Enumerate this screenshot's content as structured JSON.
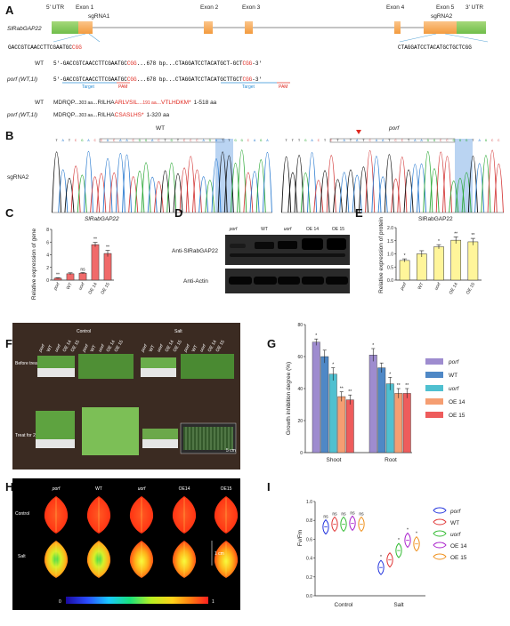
{
  "panelA": {
    "label": "A",
    "gene": "SlRabGAP22",
    "utr5": "5' UTR",
    "utr3": "3' UTR",
    "exons": [
      "Exon 1",
      "Exon 2",
      "Exon 3",
      "Exon 4",
      "Exon 5"
    ],
    "sgrna1": "sgRNA1",
    "sgrna2": "sgRNA2",
    "seq1_main": "GACCGTCAACCTTCGAATGC",
    "seq1_pam": "CGG",
    "seq2": "CTAGGATCCTACATGCTGCTCGG",
    "wt_label": "WT",
    "porf_label": "porf (WT,1I)",
    "wt_seq_a": "5'-GACCGTCAACCTTCGAATGC",
    "wt_seq_pam": "CGG",
    "wt_seq_b": "...678 bp...CTAGGATCCTACATGCT-GCT",
    "wt_seq_c": "CGG",
    "wt_seq_end": "-3'",
    "porf_seq_a": "5'-GACCGTCAACCTTCGAATGC",
    "porf_seq_pam": "CGG",
    "porf_seq_b": "...678 bp...CTAGGATCCTACATGCTTGCT",
    "porf_seq_c": "CGG",
    "porf_seq_end": "-3'",
    "target": "Target",
    "pam": "PAM",
    "prot_wt_a": "MDRQP...",
    "prot_wt_b": "303 aa",
    "prot_wt_c": "...RILHA",
    "prot_wt_d": "ARLVSIL",
    "prot_wt_e": "...",
    "prot_wt_f": "191 aa",
    "prot_wt_g": "...VTLHDKM*",
    "prot_wt_h": "1-518 aa",
    "prot_porf_a": "MDRQP...",
    "prot_porf_b": "303 aa",
    "prot_porf_c": "...RILHA",
    "prot_porf_d": "CSASLHS*",
    "prot_porf_e": "1-320 aa"
  },
  "panelB": {
    "label": "B",
    "wt": "WT",
    "porf": "porf",
    "sgrna": "sgRNA2"
  },
  "panelC": {
    "label": "C",
    "title": "SlRabGAP22",
    "ylabel": "Relative expression of gene",
    "sig": [
      "**",
      "",
      "ns",
      "**",
      "**"
    ]
  },
  "panelD": {
    "label": "D",
    "cols": [
      "porf",
      "WT",
      "uorf",
      "OE 14",
      "OE 15"
    ],
    "row1": "Anti-SlRabGAP22",
    "row2": "Anti-Actin"
  },
  "panelE": {
    "label": "E",
    "title": "SlRabGAP22",
    "ylabel": "Relative expression of protein",
    "sig": [
      "*",
      "",
      "*",
      "**",
      "**"
    ]
  },
  "panelF": {
    "label": "F",
    "control": "Control",
    "salt": "Salt",
    "before": "Before treat",
    "treat": "Treat for 21 d",
    "lines": [
      "porf",
      "WT",
      "uorf",
      "OE 14",
      "OE 15"
    ],
    "scale": "5 cm"
  },
  "panelG": {
    "label": "G",
    "ylabel": "Growth inhibition degree (%)",
    "sig_shoot": [
      "*",
      "",
      "*",
      "**",
      "**"
    ],
    "sig_root": [
      "*",
      "",
      "*",
      "**",
      "**"
    ]
  },
  "panelH": {
    "label": "H",
    "cols": [
      "porf",
      "WT",
      "uorf",
      "OE14",
      "OE15"
    ],
    "control": "Control",
    "salt": "Salt",
    "scale": "1 cm",
    "cbar_min": "0",
    "cbar_max": "1"
  },
  "panelI": {
    "label": "I",
    "ylabel": "Fv/Fm",
    "sig_control": [
      "ns",
      "ns",
      "ns",
      "ns",
      "ns"
    ],
    "sig_salt": [
      "*",
      "",
      "*",
      "*",
      "*"
    ]
  },
  "chart_data": [
    {
      "type": "bar",
      "panel": "C",
      "title": "SlRabGAP22",
      "ylabel": "Relative expression of gene",
      "categories": [
        "porf",
        "WT",
        "uorf",
        "OE 14",
        "OE 15"
      ],
      "values": [
        0.3,
        1.0,
        1.1,
        5.6,
        4.2
      ],
      "errors": [
        0.08,
        0.15,
        0.1,
        0.35,
        0.5
      ],
      "ylim": [
        0,
        8
      ],
      "yticks": [
        "0",
        "2",
        "4",
        "6",
        "8"
      ],
      "color": "#f06a6a"
    },
    {
      "type": "bar",
      "panel": "E",
      "title": "SlRabGAP22",
      "ylabel": "Relative expression of protein",
      "categories": [
        "porf",
        "WT",
        "uorf",
        "OE 14",
        "OE 15"
      ],
      "values": [
        0.75,
        1.0,
        1.27,
        1.52,
        1.46
      ],
      "errors": [
        0.06,
        0.12,
        0.08,
        0.13,
        0.13
      ],
      "ylim": [
        0,
        2.0
      ],
      "yticks": [
        "0.0",
        "0.5",
        "1.0",
        "1.5",
        "2.0"
      ],
      "color": "#fff59a"
    },
    {
      "type": "bar",
      "panel": "G",
      "ylabel": "Growth inhibition degree (%)",
      "categories": [
        "Shoot",
        "Root"
      ],
      "series": [
        {
          "name": "porf",
          "values": [
            69,
            61
          ],
          "errors": [
            2,
            4
          ],
          "color": "#9e8ccf"
        },
        {
          "name": "WT",
          "values": [
            60,
            53
          ],
          "errors": [
            4,
            3
          ],
          "color": "#4f88c6"
        },
        {
          "name": "uorf",
          "values": [
            49,
            43
          ],
          "errors": [
            4,
            4
          ],
          "color": "#4fc0d0"
        },
        {
          "name": "OE 14",
          "values": [
            35,
            37
          ],
          "errors": [
            3,
            3
          ],
          "color": "#f59e72"
        },
        {
          "name": "OE 15",
          "values": [
            33,
            37
          ],
          "errors": [
            3,
            3
          ],
          "color": "#ee5c5c"
        }
      ],
      "ylim": [
        0,
        80
      ],
      "yticks": [
        "0",
        "20",
        "40",
        "60",
        "80"
      ],
      "legend": "right"
    },
    {
      "type": "violin",
      "panel": "I",
      "ylabel": "Fv/Fm",
      "categories": [
        "Control",
        "Salt"
      ],
      "series": [
        {
          "name": "porf",
          "values": [
            0.73,
            0.3
          ],
          "color": "#2233dd"
        },
        {
          "name": "WT",
          "values": [
            0.76,
            0.38
          ],
          "color": "#e03535"
        },
        {
          "name": "uorf",
          "values": [
            0.76,
            0.48
          ],
          "color": "#33bb33"
        },
        {
          "name": "OE 14",
          "values": [
            0.77,
            0.59
          ],
          "color": "#aa22cc"
        },
        {
          "name": "OE 15",
          "values": [
            0.76,
            0.55
          ],
          "color": "#ef8f1a"
        }
      ],
      "ylim": [
        0,
        1.0
      ],
      "yticks": [
        "0.0",
        "0.2",
        "0.4",
        "0.6",
        "0.8",
        "1.0"
      ],
      "legend": "right"
    }
  ]
}
